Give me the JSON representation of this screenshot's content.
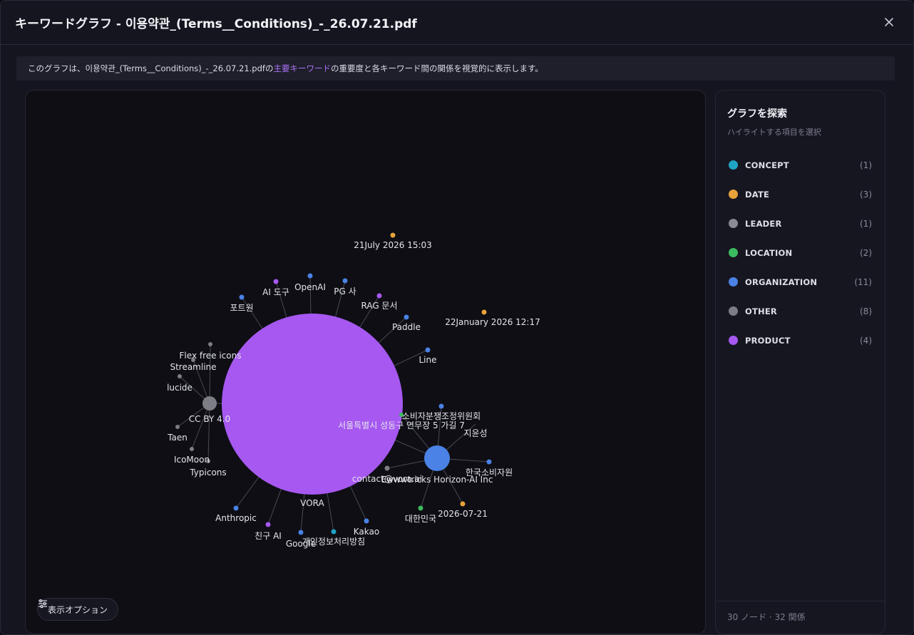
{
  "dialog": {
    "title": "キーワードグラフ - 이용약관_(Terms__Conditions)_-_26.07.21.pdf",
    "banner_before": "このグラフは、이용약관_(Terms__Conditions)_-_26.07.21.pdfの",
    "banner_highlight": "主要キーワード",
    "banner_after": "の重要度と各キーワード間の関係を視覚的に表示します。"
  },
  "graph": {
    "nodes": [
      {
        "id": "vora",
        "label": "VORA",
        "type": "product",
        "weight": "hub"
      },
      {
        "id": "cc",
        "label": "CC BY 4.0",
        "type": "other",
        "weight": "sub"
      },
      {
        "id": "horizon",
        "label": "Ewwwtricks Horizon-AI Inc",
        "type": "organization",
        "weight": "sub"
      },
      {
        "id": "date1",
        "label": "21July 2026 15:03",
        "type": "date"
      },
      {
        "id": "date2",
        "label": "22January 2026 12:17",
        "type": "date"
      },
      {
        "id": "openai",
        "label": "OpenAI",
        "type": "organization"
      },
      {
        "id": "pg",
        "label": "PG 사",
        "type": "organization"
      },
      {
        "id": "aitool",
        "label": "AI 도구",
        "type": "product"
      },
      {
        "id": "rag",
        "label": "RAG 문서",
        "type": "product"
      },
      {
        "id": "portone",
        "label": "포트원",
        "type": "organization"
      },
      {
        "id": "paddle",
        "label": "Paddle",
        "type": "organization"
      },
      {
        "id": "line",
        "label": "Line",
        "type": "organization"
      },
      {
        "id": "flex",
        "label": "Flex free icons",
        "type": "other"
      },
      {
        "id": "streamline",
        "label": "Streamline",
        "type": "other"
      },
      {
        "id": "lucide",
        "label": "lucide",
        "type": "other"
      },
      {
        "id": "taen",
        "label": "Taen",
        "type": "other"
      },
      {
        "id": "icomoon",
        "label": "IcoMoon",
        "type": "other"
      },
      {
        "id": "typicons",
        "label": "Typicons",
        "type": "other"
      },
      {
        "id": "anthropic",
        "label": "Anthropic",
        "type": "organization"
      },
      {
        "id": "friend",
        "label": "친구 AI",
        "type": "product"
      },
      {
        "id": "google",
        "label": "Google",
        "type": "organization"
      },
      {
        "id": "privacy",
        "label": "개인정보처리방침",
        "type": "concept"
      },
      {
        "id": "kakao",
        "label": "Kakao",
        "type": "organization"
      },
      {
        "id": "korea",
        "label": "대한민국",
        "type": "location"
      },
      {
        "id": "date3",
        "label": "2026-07-21",
        "type": "date"
      },
      {
        "id": "kca",
        "label": "한국소비자원",
        "type": "organization"
      },
      {
        "id": "jiyun",
        "label": "지윤성",
        "type": "leader"
      },
      {
        "id": "dispute",
        "label": "소비자분쟁조정위원회",
        "type": "organization"
      },
      {
        "id": "seoul",
        "label": "서울특별시 성동구 연무장 5 가길 7",
        "type": "location"
      },
      {
        "id": "contact",
        "label": "contact@vora.ai",
        "type": "other"
      }
    ]
  },
  "options_button": {
    "label": "表示オプション",
    "icon": "sliders-icon"
  },
  "sidebar": {
    "title": "グラフを探索",
    "subtitle": "ハイライトする項目を選択",
    "categories": [
      {
        "name": "CONCEPT",
        "count": "(1)",
        "color": "#1fa3c4"
      },
      {
        "name": "DATE",
        "count": "(3)",
        "color": "#e8a23a"
      },
      {
        "name": "LEADER",
        "count": "(1)",
        "color": "#8a8a94"
      },
      {
        "name": "LOCATION",
        "count": "(2)",
        "color": "#3cba5f"
      },
      {
        "name": "ORGANIZATION",
        "count": "(11)",
        "color": "#4a82e6"
      },
      {
        "name": "OTHER",
        "count": "(8)",
        "color": "#7d7d86"
      },
      {
        "name": "PRODUCT",
        "count": "(4)",
        "color": "#a658f0"
      }
    ],
    "footer": "30 ノード · 32 関係"
  },
  "colors": {
    "concept": "#1fa3c4",
    "date": "#e8a23a",
    "leader": "#8a8a94",
    "location": "#3cba5f",
    "organization": "#4a82e6",
    "other": "#7d7d86",
    "product": "#a658f0"
  }
}
